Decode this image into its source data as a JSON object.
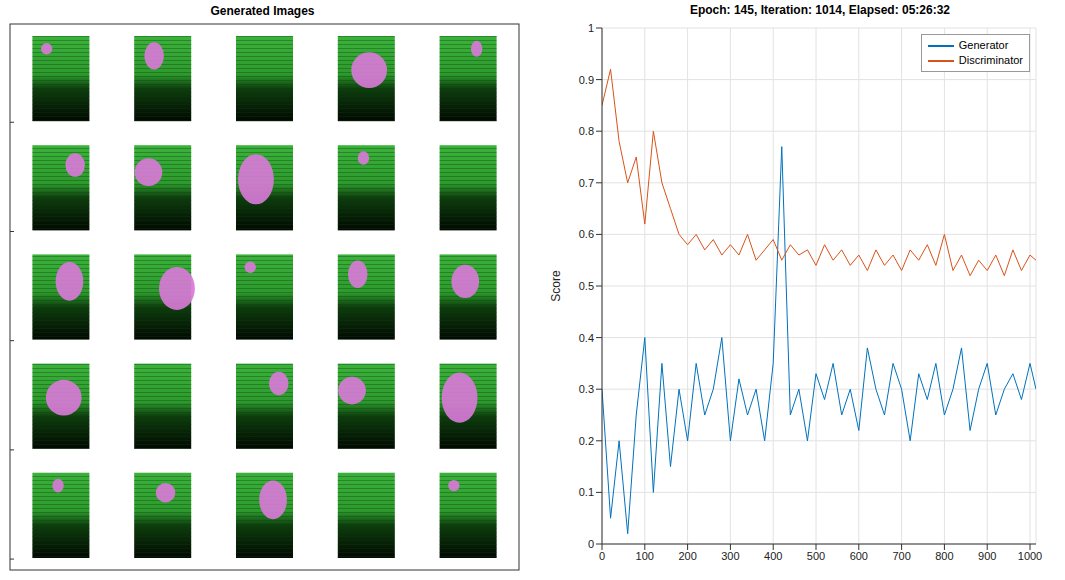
{
  "chart_data": [
    {
      "type": "image_grid",
      "title": "Generated Images",
      "rows": 5,
      "columns": 5
    },
    {
      "type": "line",
      "title": "Epoch: 145, Iteration: 1014, Elapsed: 05:26:32",
      "y_label": "Score",
      "x": [
        0,
        20,
        40,
        60,
        80,
        100,
        120,
        140,
        160,
        180,
        200,
        220,
        240,
        260,
        280,
        300,
        320,
        340,
        360,
        380,
        400,
        420,
        440,
        460,
        480,
        500,
        520,
        540,
        560,
        580,
        600,
        620,
        640,
        660,
        680,
        700,
        720,
        740,
        760,
        780,
        800,
        820,
        840,
        860,
        880,
        900,
        920,
        940,
        960,
        980,
        1000,
        1014
      ],
      "series": [
        {
          "name": "Generator",
          "color": "#0072bd",
          "values": [
            0.3,
            0.05,
            0.2,
            0.02,
            0.25,
            0.4,
            0.1,
            0.35,
            0.15,
            0.3,
            0.2,
            0.35,
            0.25,
            0.3,
            0.4,
            0.2,
            0.32,
            0.25,
            0.3,
            0.2,
            0.35,
            0.77,
            0.25,
            0.3,
            0.2,
            0.33,
            0.28,
            0.35,
            0.25,
            0.3,
            0.22,
            0.38,
            0.3,
            0.25,
            0.35,
            0.3,
            0.2,
            0.33,
            0.28,
            0.35,
            0.25,
            0.3,
            0.38,
            0.22,
            0.3,
            0.35,
            0.25,
            0.3,
            0.33,
            0.28,
            0.35,
            0.3
          ]
        },
        {
          "name": "Discriminator",
          "color": "#d95319",
          "values": [
            0.85,
            0.92,
            0.78,
            0.7,
            0.75,
            0.62,
            0.8,
            0.7,
            0.65,
            0.6,
            0.58,
            0.6,
            0.57,
            0.59,
            0.56,
            0.58,
            0.56,
            0.6,
            0.55,
            0.57,
            0.59,
            0.55,
            0.58,
            0.56,
            0.57,
            0.54,
            0.58,
            0.55,
            0.57,
            0.54,
            0.56,
            0.53,
            0.57,
            0.54,
            0.56,
            0.53,
            0.57,
            0.55,
            0.58,
            0.54,
            0.6,
            0.53,
            0.56,
            0.52,
            0.55,
            0.53,
            0.56,
            0.52,
            0.57,
            0.53,
            0.56,
            0.55
          ]
        }
      ],
      "xlim": [
        0,
        1014
      ],
      "xticks": [
        0,
        100,
        200,
        300,
        400,
        500,
        600,
        700,
        800,
        900,
        1000
      ],
      "ylim": [
        0,
        1
      ],
      "yticks": [
        0,
        0.1,
        0.2,
        0.3,
        0.4,
        0.5,
        0.6,
        0.7,
        0.8,
        0.9,
        1
      ],
      "grid": true,
      "legend": "upper right"
    }
  ]
}
